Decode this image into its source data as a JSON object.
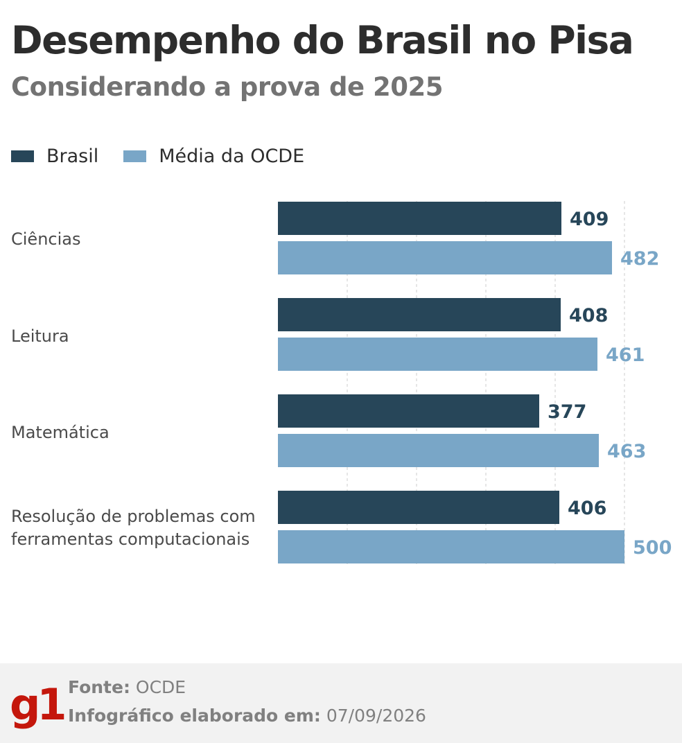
{
  "title": "Desempenho do Brasil no Pisa",
  "subtitle": "Considerando a prova de 2025",
  "colors": {
    "brasil": "#274659",
    "ocde": "#79a6c7",
    "grid": "#cccccc"
  },
  "chart_data": {
    "type": "bar",
    "orientation": "horizontal",
    "categories": [
      "Ciências",
      "Leitura",
      "Matemática",
      "Resolução de problemas com ferramentas computacionais"
    ],
    "category_lines": [
      [
        "Ciências"
      ],
      [
        "Leitura"
      ],
      [
        "Matemática"
      ],
      [
        "Resolução de problemas com",
        "ferramentas computacionais"
      ]
    ],
    "series": [
      {
        "name": "Brasil",
        "values": [
          409,
          408,
          377,
          406
        ]
      },
      {
        "name": "Média da OCDE",
        "values": [
          482,
          461,
          463,
          500
        ]
      }
    ],
    "xlim": [
      0,
      500
    ],
    "grid": true,
    "legend": "top-left"
  },
  "footer": {
    "logo": "g1",
    "source_label": "Fonte:",
    "source_value": "OCDE",
    "date_label": "Infográfico elaborado em:",
    "date_value": "07/09/2026"
  }
}
